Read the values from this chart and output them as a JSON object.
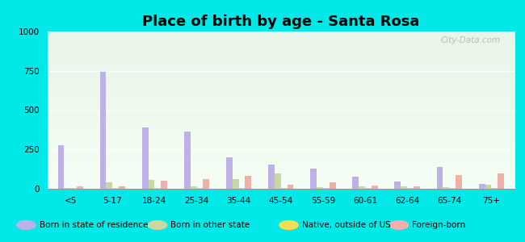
{
  "title": "Place of birth by age - Santa Rosa",
  "categories": [
    "<5",
    "5-17",
    "18-24",
    "25-34",
    "35-44",
    "45-54",
    "55-59",
    "60-61",
    "62-64",
    "65-74",
    "75+"
  ],
  "born_in_state": [
    275,
    745,
    390,
    365,
    200,
    155,
    130,
    75,
    45,
    140,
    30
  ],
  "born_other_state": [
    5,
    40,
    55,
    15,
    60,
    100,
    10,
    15,
    15,
    10,
    25
  ],
  "native_outside": [
    3,
    3,
    3,
    5,
    3,
    3,
    3,
    3,
    5,
    3,
    3
  ],
  "foreign_born": [
    15,
    15,
    50,
    60,
    80,
    25,
    40,
    20,
    15,
    85,
    100
  ],
  "ylim": [
    0,
    1000
  ],
  "yticks": [
    0,
    250,
    500,
    750,
    1000
  ],
  "colors": {
    "born_in_state": "#c0b0e8",
    "born_other_state": "#c8d8a0",
    "native_outside": "#f0e050",
    "foreign_born": "#f0b0a8"
  },
  "legend_labels": [
    "Born in state of residence",
    "Born in other state",
    "Native, outside of US",
    "Foreign-born"
  ],
  "background_outer": "#00e8e8",
  "watermark": "City-Data.com",
  "bar_width": 0.15,
  "title_fontsize": 13,
  "tick_fontsize": 7.5,
  "legend_fontsize": 7.5
}
